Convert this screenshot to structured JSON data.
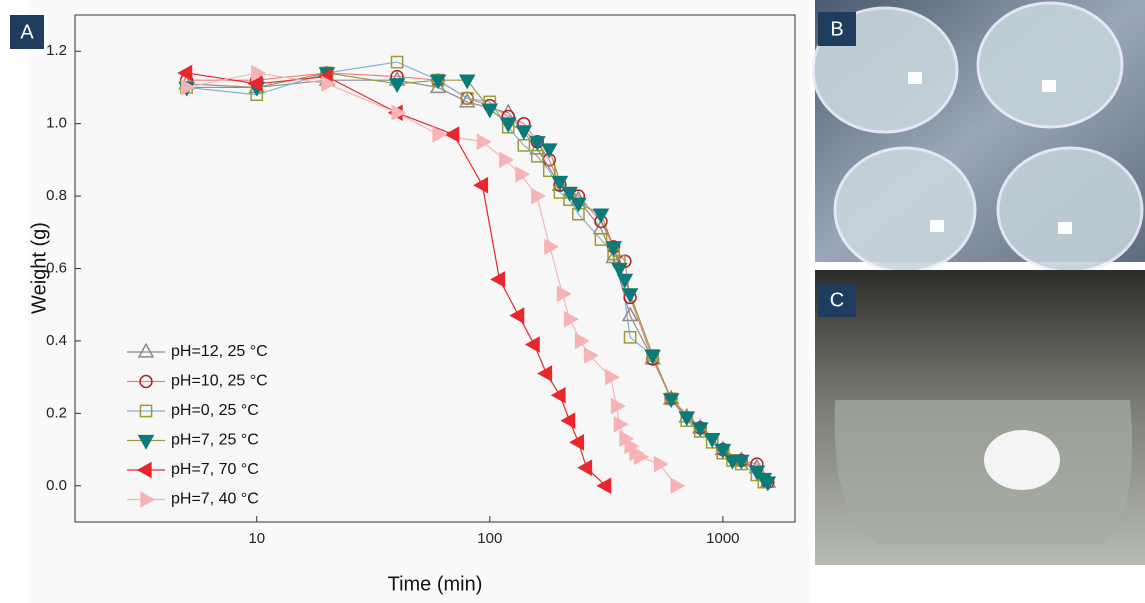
{
  "panels": [
    "A",
    "B",
    "C"
  ],
  "chart_data": {
    "type": "line",
    "x_label": "Time (min)",
    "y_label": "Weight (g)",
    "xscale": "log",
    "xlim": [
      1.66,
      2040
    ],
    "xticks": [
      10,
      100,
      1000
    ],
    "ylim": [
      -0.1,
      1.3
    ],
    "yticks": [
      {
        "value": 0,
        "label": "0.0"
      },
      0.2,
      0.4,
      0.6,
      0.8,
      {
        "value": 1,
        "label": "1.0"
      },
      1.2
    ],
    "legend": "lower left",
    "series": [
      {
        "name": "pH=12, 25 °C",
        "color": "#8c8c8c",
        "line_color": "#8c8c8c",
        "marker": "triangle-up",
        "filled": false,
        "x": [
          5,
          10,
          20,
          40,
          60,
          80,
          120,
          160,
          200,
          240,
          300,
          340,
          400,
          500,
          600,
          700,
          800,
          1000,
          1200,
          1400,
          1560
        ],
        "values": [
          1.11,
          1.1,
          1.12,
          1.12,
          1.1,
          1.06,
          1.03,
          0.93,
          0.83,
          0.79,
          0.71,
          0.63,
          0.47,
          0.35,
          0.24,
          0.19,
          0.16,
          0.1,
          0.07,
          0.05,
          0.01
        ]
      },
      {
        "name": "pH=10, 25 °C",
        "color": "#b22222",
        "line_color": "#f08080",
        "marker": "circle",
        "filled": false,
        "x": [
          5,
          10,
          20,
          40,
          60,
          80,
          100,
          120,
          140,
          160,
          180,
          200,
          240,
          300,
          340,
          380,
          400,
          500,
          600,
          800,
          1000,
          1200,
          1400,
          1560
        ],
        "values": [
          1.12,
          1.12,
          1.14,
          1.13,
          1.12,
          1.07,
          1.05,
          1.02,
          1.0,
          0.95,
          0.9,
          0.83,
          0.8,
          0.73,
          0.66,
          0.62,
          0.52,
          0.35,
          0.24,
          0.16,
          0.1,
          0.07,
          0.06,
          0.01
        ]
      },
      {
        "name": "pH=0, 25 °C",
        "color": "#a09a30",
        "line_color": "#7fb3d5",
        "marker": "square",
        "filled": false,
        "x": [
          5,
          10,
          20,
          40,
          60,
          80,
          100,
          120,
          140,
          160,
          180,
          200,
          220,
          240,
          300,
          340,
          360,
          400,
          500,
          600,
          700,
          800,
          900,
          1000,
          1100,
          1200,
          1400,
          1500
        ],
        "values": [
          1.1,
          1.08,
          1.14,
          1.17,
          1.12,
          1.07,
          1.06,
          0.99,
          0.94,
          0.91,
          0.87,
          0.81,
          0.79,
          0.75,
          0.68,
          0.64,
          0.62,
          0.41,
          0.36,
          0.24,
          0.18,
          0.15,
          0.12,
          0.09,
          0.07,
          0.06,
          0.03,
          0.01
        ]
      },
      {
        "name": "pH=7, 25 °C",
        "color": "#0a7b78",
        "line_color": "#9a9a40",
        "marker": "triangle-down",
        "filled": true,
        "x": [
          5,
          10,
          20,
          40,
          60,
          80,
          100,
          120,
          140,
          160,
          180,
          200,
          220,
          240,
          300,
          340,
          360,
          380,
          400,
          500,
          600,
          700,
          800,
          900,
          1000,
          1100,
          1200,
          1400,
          1500,
          1560
        ],
        "values": [
          1.1,
          1.1,
          1.14,
          1.11,
          1.12,
          1.12,
          1.04,
          1.0,
          0.98,
          0.95,
          0.93,
          0.84,
          0.81,
          0.78,
          0.75,
          0.66,
          0.6,
          0.57,
          0.53,
          0.36,
          0.24,
          0.19,
          0.16,
          0.13,
          0.1,
          0.07,
          0.07,
          0.04,
          0.02,
          0.01
        ]
      },
      {
        "name": "pH=7, 70 °C",
        "color": "#e8262e",
        "line_color": "#e8262e",
        "marker": "triangle-left",
        "filled": true,
        "x": [
          5,
          10,
          20,
          40,
          70,
          93,
          110,
          133,
          155,
          175,
          200,
          220,
          240,
          260,
          314
        ],
        "values": [
          1.14,
          1.11,
          1.13,
          1.03,
          0.97,
          0.83,
          0.57,
          0.47,
          0.39,
          0.31,
          0.25,
          0.18,
          0.12,
          0.05,
          0.0
        ]
      },
      {
        "name": "pH=7, 40 °C",
        "color": "#f7b3b3",
        "line_color": "#f7b3b3",
        "marker": "triangle-right",
        "filled": true,
        "x": [
          5,
          10,
          20,
          40,
          60,
          93,
          116,
          136,
          159,
          181,
          205,
          220,
          245,
          268,
          330,
          350,
          360,
          380,
          400,
          420,
          440,
          535,
          630
        ],
        "values": [
          1.1,
          1.14,
          1.11,
          1.03,
          0.97,
          0.95,
          0.9,
          0.86,
          0.8,
          0.66,
          0.53,
          0.46,
          0.4,
          0.36,
          0.3,
          0.22,
          0.17,
          0.13,
          0.11,
          0.09,
          0.08,
          0.06,
          0.0
        ]
      }
    ]
  }
}
